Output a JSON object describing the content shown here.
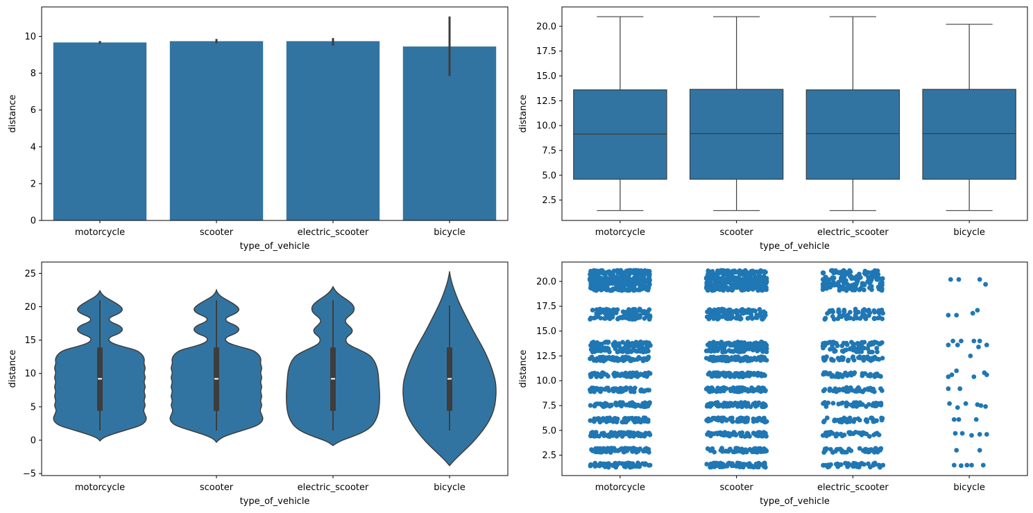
{
  "colors": {
    "fill": "#3274a1",
    "dot": "#1f77b4",
    "line": "#3d3d3d",
    "axis": "#000000",
    "background": "#ffffff"
  },
  "chart_data": [
    {
      "type": "bar",
      "categories": [
        "motorcycle",
        "scooter",
        "electric_scooter",
        "bicycle"
      ],
      "values": [
        9.67,
        9.74,
        9.74,
        9.45
      ],
      "ci": [
        [
          9.6,
          9.75
        ],
        [
          9.62,
          9.86
        ],
        [
          9.5,
          9.91
        ],
        [
          7.85,
          11.08
        ]
      ],
      "xlabel": "type_of_vehicle",
      "ylabel": "distance",
      "ylim": [
        0,
        11.6
      ],
      "yticks": [
        0,
        2,
        4,
        6,
        8,
        10
      ],
      "ytick_labels": [
        "0",
        "2",
        "4",
        "6",
        "8",
        "10"
      ]
    },
    {
      "type": "box",
      "categories": [
        "motorcycle",
        "scooter",
        "electric_scooter",
        "bicycle"
      ],
      "boxes": [
        {
          "whislo": 1.45,
          "q1": 4.6,
          "med": 9.15,
          "q3": 13.6,
          "whishi": 20.97
        },
        {
          "whislo": 1.45,
          "q1": 4.6,
          "med": 9.2,
          "q3": 13.65,
          "whishi": 20.97
        },
        {
          "whislo": 1.45,
          "q1": 4.6,
          "med": 9.2,
          "q3": 13.6,
          "whishi": 20.97
        },
        {
          "whislo": 1.45,
          "q1": 4.6,
          "med": 9.2,
          "q3": 13.65,
          "whishi": 20.2
        }
      ],
      "xlabel": "type_of_vehicle",
      "ylabel": "distance",
      "ylim": [
        0.45,
        21.95
      ],
      "yticks": [
        2.5,
        5.0,
        7.5,
        10.0,
        12.5,
        15.0,
        17.5,
        20.0
      ],
      "ytick_labels": [
        "2.5",
        "5.0",
        "7.5",
        "10.0",
        "12.5",
        "15.0",
        "17.5",
        "20.0"
      ]
    },
    {
      "type": "violin",
      "categories": [
        "motorcycle",
        "scooter",
        "electric_scooter",
        "bicycle"
      ],
      "violins": [
        {
          "y": [
            -0.1,
            0.3,
            0.8,
            1.5,
            2.2,
            2.8,
            3.3,
            3.8,
            4.5,
            5.2,
            5.9,
            6.6,
            7.3,
            8.0,
            8.7,
            9.4,
            10.1,
            10.8,
            11.5,
            12.2,
            12.9,
            13.5,
            14.0,
            14.5,
            15.0,
            15.5,
            16.0,
            16.6,
            17.2,
            17.8,
            18.4,
            19.0,
            19.6,
            20.2,
            20.8,
            21.5,
            22.1,
            22.4
          ],
          "w": [
            0.0,
            0.05,
            0.22,
            0.55,
            0.88,
            0.98,
            1.0,
            0.97,
            0.93,
            0.98,
            0.94,
            0.98,
            0.94,
            0.98,
            0.94,
            0.98,
            0.94,
            0.98,
            0.94,
            0.96,
            0.9,
            0.78,
            0.5,
            0.27,
            0.18,
            0.22,
            0.42,
            0.5,
            0.42,
            0.2,
            0.2,
            0.42,
            0.5,
            0.42,
            0.28,
            0.1,
            0.02,
            0.0
          ]
        },
        {
          "y": [
            -0.3,
            0.2,
            0.8,
            1.5,
            2.2,
            2.8,
            3.3,
            3.8,
            4.5,
            5.2,
            5.9,
            6.6,
            7.3,
            8.0,
            8.7,
            9.4,
            10.1,
            10.8,
            11.5,
            12.2,
            12.9,
            13.5,
            14.0,
            14.5,
            15.0,
            15.5,
            16.0,
            16.6,
            17.2,
            17.8,
            18.4,
            19.0,
            19.6,
            20.2,
            20.8,
            21.5,
            22.1,
            22.5
          ],
          "w": [
            0.0,
            0.06,
            0.25,
            0.58,
            0.88,
            0.98,
            1.0,
            0.97,
            0.93,
            0.98,
            0.94,
            0.98,
            0.94,
            0.98,
            0.94,
            0.98,
            0.94,
            0.98,
            0.94,
            0.96,
            0.9,
            0.78,
            0.5,
            0.27,
            0.18,
            0.22,
            0.42,
            0.5,
            0.42,
            0.2,
            0.2,
            0.42,
            0.5,
            0.42,
            0.28,
            0.1,
            0.02,
            0.0
          ]
        },
        {
          "y": [
            -0.8,
            -0.2,
            0.5,
            1.2,
            2.0,
            3.0,
            4.0,
            5.0,
            6.0,
            7.0,
            8.0,
            9.0,
            10.0,
            11.0,
            12.0,
            12.8,
            13.5,
            14.0,
            14.5,
            15.0,
            15.5,
            16.0,
            16.6,
            17.2,
            17.8,
            18.4,
            19.0,
            19.6,
            20.2,
            20.8,
            21.4,
            22.0,
            22.6,
            23.0
          ],
          "w": [
            0.0,
            0.12,
            0.4,
            0.65,
            0.82,
            0.92,
            0.97,
            0.99,
            1.0,
            1.0,
            0.99,
            0.98,
            0.97,
            0.94,
            0.88,
            0.78,
            0.58,
            0.42,
            0.3,
            0.27,
            0.3,
            0.4,
            0.42,
            0.33,
            0.25,
            0.3,
            0.42,
            0.46,
            0.44,
            0.35,
            0.22,
            0.1,
            0.03,
            0.0
          ]
        },
        {
          "y": [
            -3.8,
            -3.0,
            -2.0,
            -1.0,
            0.0,
            1.5,
            3.0,
            4.5,
            6.0,
            7.7,
            9.0,
            10.5,
            12.0,
            13.5,
            15.0,
            16.5,
            18.0,
            19.5,
            21.0,
            22.5,
            23.8,
            24.8,
            25.3
          ],
          "w": [
            0.0,
            0.1,
            0.25,
            0.4,
            0.54,
            0.72,
            0.86,
            0.95,
            0.99,
            1.0,
            0.98,
            0.92,
            0.84,
            0.74,
            0.62,
            0.5,
            0.39,
            0.28,
            0.18,
            0.1,
            0.04,
            0.01,
            0.0
          ]
        }
      ],
      "inner_box": [
        {
          "whislo": 1.45,
          "q1": 4.4,
          "med": 9.2,
          "q3": 13.9,
          "whishi": 20.97
        },
        {
          "whislo": 1.45,
          "q1": 4.4,
          "med": 9.2,
          "q3": 13.9,
          "whishi": 20.97
        },
        {
          "whislo": 1.45,
          "q1": 4.4,
          "med": 9.2,
          "q3": 13.9,
          "whishi": 20.97
        },
        {
          "whislo": 1.45,
          "q1": 4.4,
          "med": 9.2,
          "q3": 13.9,
          "whishi": 20.2
        }
      ],
      "xlabel": "type_of_vehicle",
      "ylabel": "distance",
      "ylim": [
        -5.3,
        26.7
      ],
      "yticks": [
        -5,
        0,
        5,
        10,
        15,
        20,
        25
      ],
      "ytick_labels": [
        "−5",
        "0",
        "5",
        "10",
        "15",
        "20",
        "25"
      ]
    },
    {
      "type": "scatter",
      "subtype": "strip",
      "categories": [
        "motorcycle",
        "scooter",
        "electric_scooter",
        "bicycle"
      ],
      "levels": [
        1.5,
        3.0,
        4.6,
        6.05,
        7.6,
        9.1,
        10.6,
        12.2,
        13.7,
        16.7,
        19.8,
        20.9
      ],
      "strips": [
        {
          "jitter": 0.26,
          "rows": [
            [
              1.5,
              70
            ],
            [
              3.0,
              70
            ],
            [
              4.6,
              70
            ],
            [
              6.05,
              70
            ],
            [
              7.6,
              70
            ],
            [
              9.1,
              70
            ],
            [
              10.6,
              70
            ],
            [
              12.2,
              70
            ],
            [
              13.1,
              60
            ],
            [
              13.7,
              70
            ],
            [
              16.4,
              60
            ],
            [
              17.0,
              60
            ],
            [
              19.3,
              80
            ],
            [
              19.8,
              80
            ],
            [
              20.3,
              80
            ],
            [
              20.9,
              80
            ]
          ]
        },
        {
          "jitter": 0.26,
          "rows": [
            [
              1.5,
              70
            ],
            [
              3.0,
              70
            ],
            [
              4.6,
              70
            ],
            [
              6.05,
              70
            ],
            [
              7.6,
              70
            ],
            [
              9.1,
              70
            ],
            [
              10.6,
              70
            ],
            [
              12.2,
              70
            ],
            [
              13.1,
              60
            ],
            [
              13.7,
              70
            ],
            [
              16.4,
              60
            ],
            [
              17.0,
              60
            ],
            [
              19.3,
              80
            ],
            [
              19.8,
              80
            ],
            [
              20.3,
              80
            ],
            [
              20.9,
              80
            ]
          ]
        },
        {
          "jitter": 0.26,
          "rows": [
            [
              1.5,
              40
            ],
            [
              3.0,
              40
            ],
            [
              4.6,
              40
            ],
            [
              6.05,
              40
            ],
            [
              7.6,
              40
            ],
            [
              9.1,
              40
            ],
            [
              10.6,
              40
            ],
            [
              12.2,
              40
            ],
            [
              13.1,
              30
            ],
            [
              13.7,
              40
            ],
            [
              16.4,
              30
            ],
            [
              17.0,
              30
            ],
            [
              19.3,
              40
            ],
            [
              19.8,
              40
            ],
            [
              20.3,
              40
            ],
            [
              20.9,
              40
            ]
          ]
        }
      ],
      "bicycle_points": [
        [
          -0.16,
          20.2
        ],
        [
          -0.09,
          20.2
        ],
        [
          0.09,
          20.2
        ],
        [
          0.14,
          19.7
        ],
        [
          -0.18,
          16.6
        ],
        [
          -0.11,
          16.6
        ],
        [
          0.03,
          16.8
        ],
        [
          0.07,
          17.1
        ],
        [
          -0.14,
          14.0
        ],
        [
          -0.07,
          14.0
        ],
        [
          0.04,
          14.0
        ],
        [
          0.09,
          14.0
        ],
        [
          -0.18,
          13.6
        ],
        [
          -0.1,
          13.6
        ],
        [
          0.08,
          13.4
        ],
        [
          0.15,
          13.6
        ],
        [
          0.01,
          12.5
        ],
        [
          -0.11,
          11.0
        ],
        [
          -0.15,
          10.6
        ],
        [
          -0.18,
          10.4
        ],
        [
          0.04,
          10.4
        ],
        [
          0.13,
          10.8
        ],
        [
          0.15,
          10.6
        ],
        [
          -0.18,
          9.2
        ],
        [
          -0.08,
          9.2
        ],
        [
          -0.17,
          7.7
        ],
        [
          -0.1,
          7.3
        ],
        [
          -0.03,
          7.7
        ],
        [
          0.07,
          7.6
        ],
        [
          0.1,
          7.5
        ],
        [
          0.14,
          7.4
        ],
        [
          -0.13,
          6.1
        ],
        [
          -0.09,
          6.1
        ],
        [
          0.06,
          6.1
        ],
        [
          -0.12,
          4.7
        ],
        [
          -0.06,
          4.7
        ],
        [
          0.02,
          4.5
        ],
        [
          0.09,
          4.6
        ],
        [
          0.15,
          4.6
        ],
        [
          -0.11,
          3.0
        ],
        [
          0.09,
          3.0
        ],
        [
          -0.13,
          1.5
        ],
        [
          -0.07,
          1.45
        ],
        [
          -0.02,
          1.5
        ],
        [
          0.02,
          1.5
        ],
        [
          0.12,
          1.5
        ]
      ],
      "xlabel": "type_of_vehicle",
      "ylabel": "distance",
      "ylim": [
        0.45,
        21.95
      ],
      "yticks": [
        2.5,
        5.0,
        7.5,
        10.0,
        12.5,
        15.0,
        17.5,
        20.0
      ],
      "ytick_labels": [
        "2.5",
        "5.0",
        "7.5",
        "10.0",
        "12.5",
        "15.0",
        "17.5",
        "20.0"
      ]
    }
  ]
}
